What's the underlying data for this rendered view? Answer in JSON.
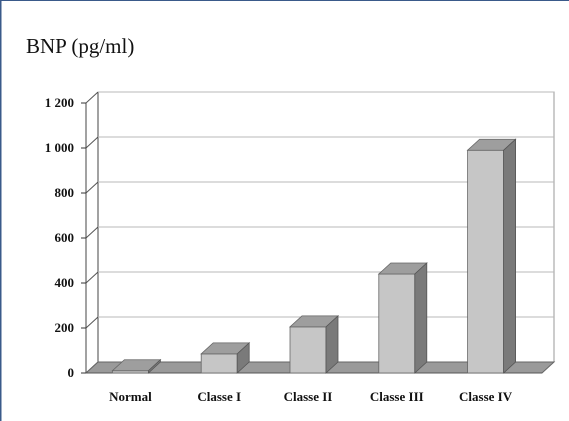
{
  "chart_data": {
    "type": "bar",
    "title": "BNP (pg/ml)",
    "categories": [
      "Normal",
      "Classe I",
      "Classe II",
      "Classe III",
      "Classe IV"
    ],
    "values": [
      10,
      85,
      205,
      440,
      990
    ],
    "ylim": [
      0,
      1200
    ],
    "yticks": [
      0,
      200,
      400,
      600,
      800,
      1000,
      1200
    ],
    "ytick_labels": [
      "0",
      "200",
      "400",
      "600",
      "800",
      "1 000",
      "1 200"
    ],
    "grid": true,
    "style": "3d"
  }
}
